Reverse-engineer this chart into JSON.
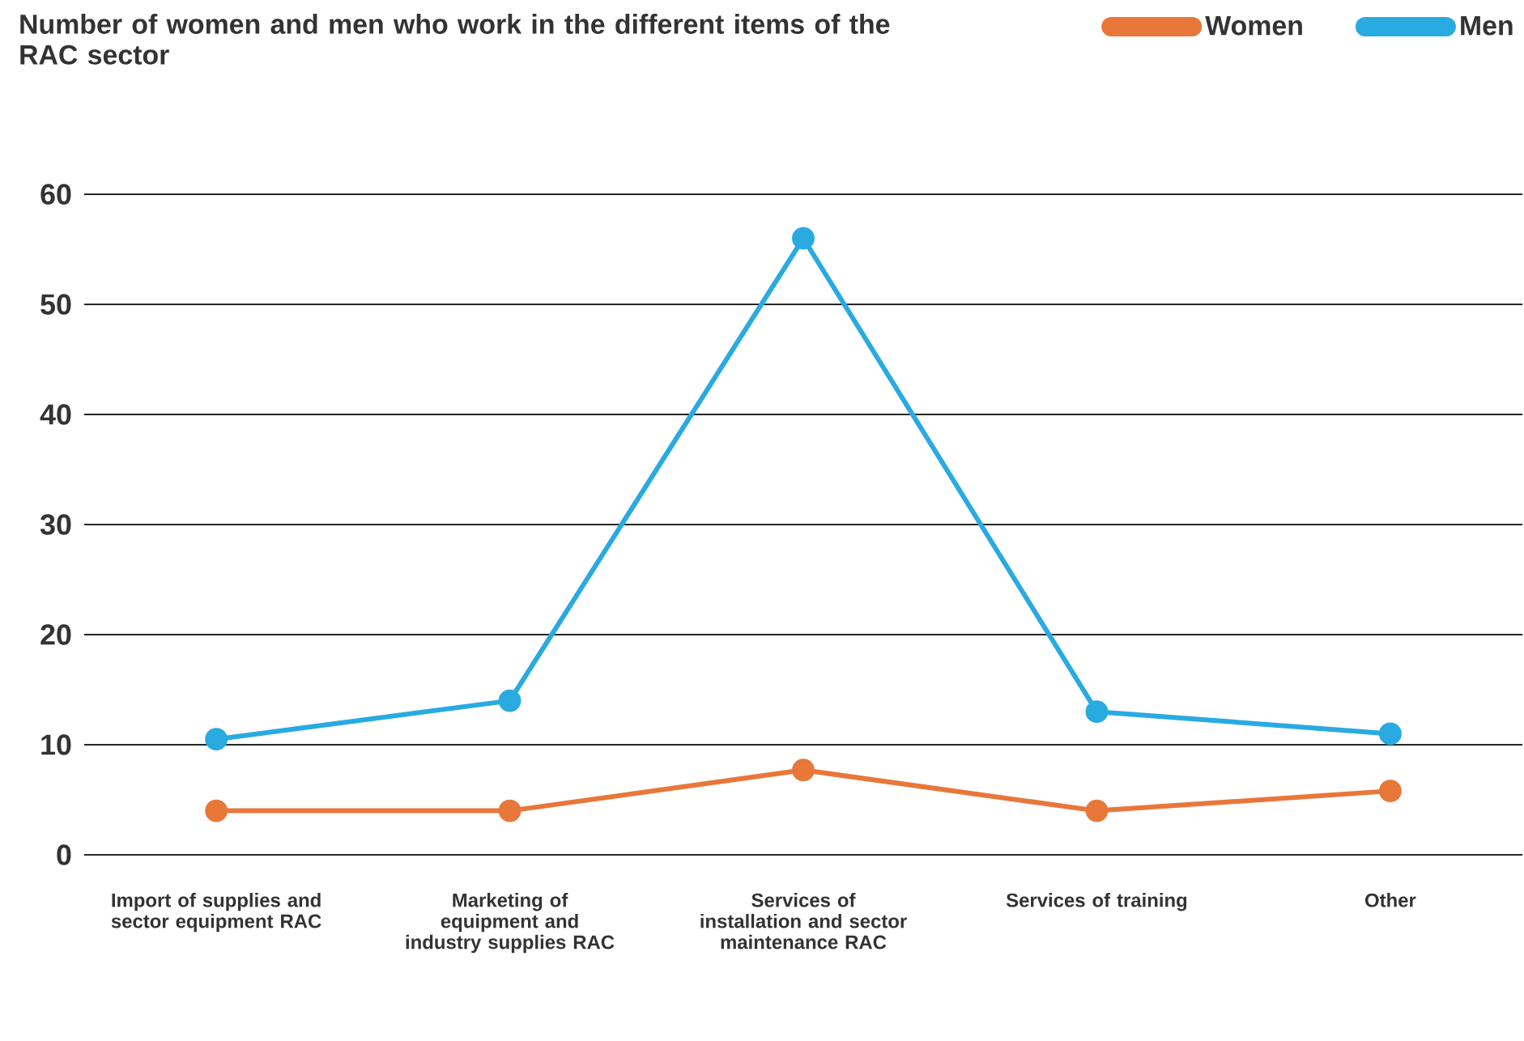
{
  "chart_data": {
    "type": "line",
    "title": "Number of women and men who work in the different items of the RAC sector",
    "categories": [
      "Import of supplies and sector equipment RAC",
      "Marketing of equipment and industry supplies RAC",
      "Services of installation and sector maintenance RAC",
      "Services of training",
      "Other"
    ],
    "series": [
      {
        "name": "Women",
        "color": "#e8773a",
        "values": [
          4,
          4,
          7.7,
          4,
          5.8
        ]
      },
      {
        "name": "Men",
        "color": "#29aae1",
        "values": [
          10.5,
          14,
          56,
          13,
          11
        ]
      }
    ],
    "ylim": [
      0,
      60
    ],
    "yticks": [
      0,
      10,
      20,
      30,
      40,
      50,
      60
    ],
    "grid": "y",
    "legend": "top right",
    "marker": "circle",
    "line_style": "solid"
  }
}
